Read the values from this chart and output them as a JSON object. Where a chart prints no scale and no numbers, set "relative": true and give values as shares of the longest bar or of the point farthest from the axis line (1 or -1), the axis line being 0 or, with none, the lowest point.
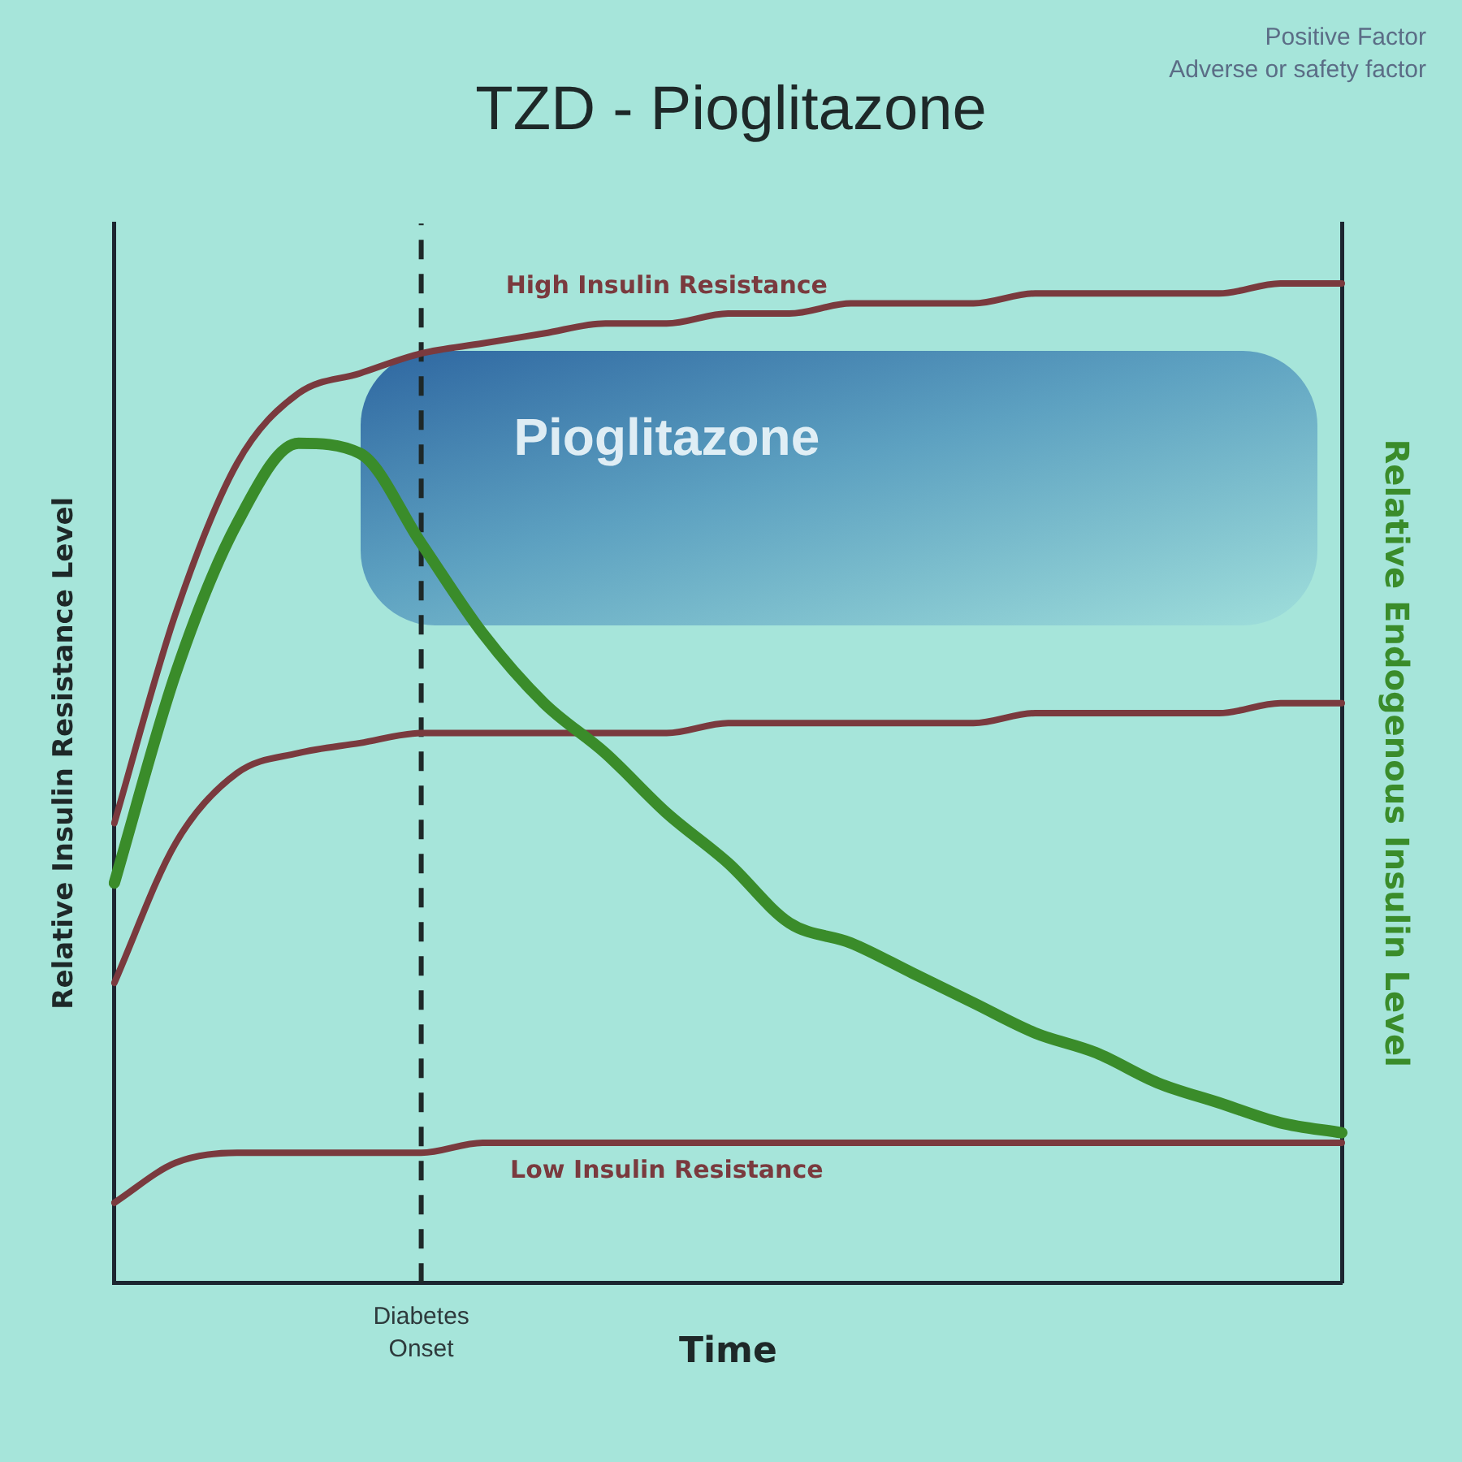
{
  "chart_data": {
    "type": "line",
    "title": "TZD - Pioglitazone",
    "xlabel": "Time",
    "ylabel": "Relative Insulin Resistance Level",
    "y2label": "Relative Endogenous Insulin Level",
    "relative": true,
    "tick_labels": false,
    "marker": "none",
    "categories": [
      null,
      null,
      null,
      null,
      null,
      null,
      null,
      null,
      null,
      null,
      null,
      null,
      null,
      null,
      null,
      null,
      null,
      null,
      null,
      null,
      null
    ],
    "series": [
      {
        "name": "High Insulin Resistance",
        "color": "#7a3a3e",
        "values": [
          0.46,
          0.67,
          0.82,
          0.89,
          0.91,
          0.93,
          0.94,
          0.95,
          0.96,
          0.96,
          0.97,
          0.97,
          0.98,
          0.98,
          0.98,
          0.99,
          0.99,
          0.99,
          0.99,
          1,
          1
        ]
      },
      {
        "color": "#7a3a3e",
        "values": [
          0.3,
          0.44,
          0.51,
          0.53,
          0.54,
          0.55,
          0.55,
          0.55,
          0.55,
          0.55,
          0.56,
          0.56,
          0.56,
          0.56,
          0.56,
          0.57,
          0.57,
          0.57,
          0.57,
          0.58,
          0.58
        ]
      },
      {
        "name": "Low Insulin Resistance",
        "color": "#7a3a3e",
        "values": [
          0.08,
          0.12,
          0.13,
          0.13,
          0.13,
          0.13,
          0.14,
          0.14,
          0.14,
          0.14,
          0.14,
          0.14,
          0.14,
          0.14,
          0.14,
          0.14,
          0.14,
          0.14,
          0.14,
          0.14,
          0.14
        ]
      },
      {
        "color": "#3a8c2a",
        "values": [
          0.4,
          0.61,
          0.76,
          0.84,
          0.83,
          0.74,
          0.65,
          0.58,
          0.53,
          0.47,
          0.42,
          0.36,
          0.34,
          0.31,
          0.28,
          0.25,
          0.23,
          0.2,
          0.18,
          0.16,
          0.15
        ]
      }
    ],
    "annotations": [
      "Pioglitazone",
      "Diabetes Onset",
      "Positive Factor",
      "Adverse or safety factor"
    ]
  }
}
